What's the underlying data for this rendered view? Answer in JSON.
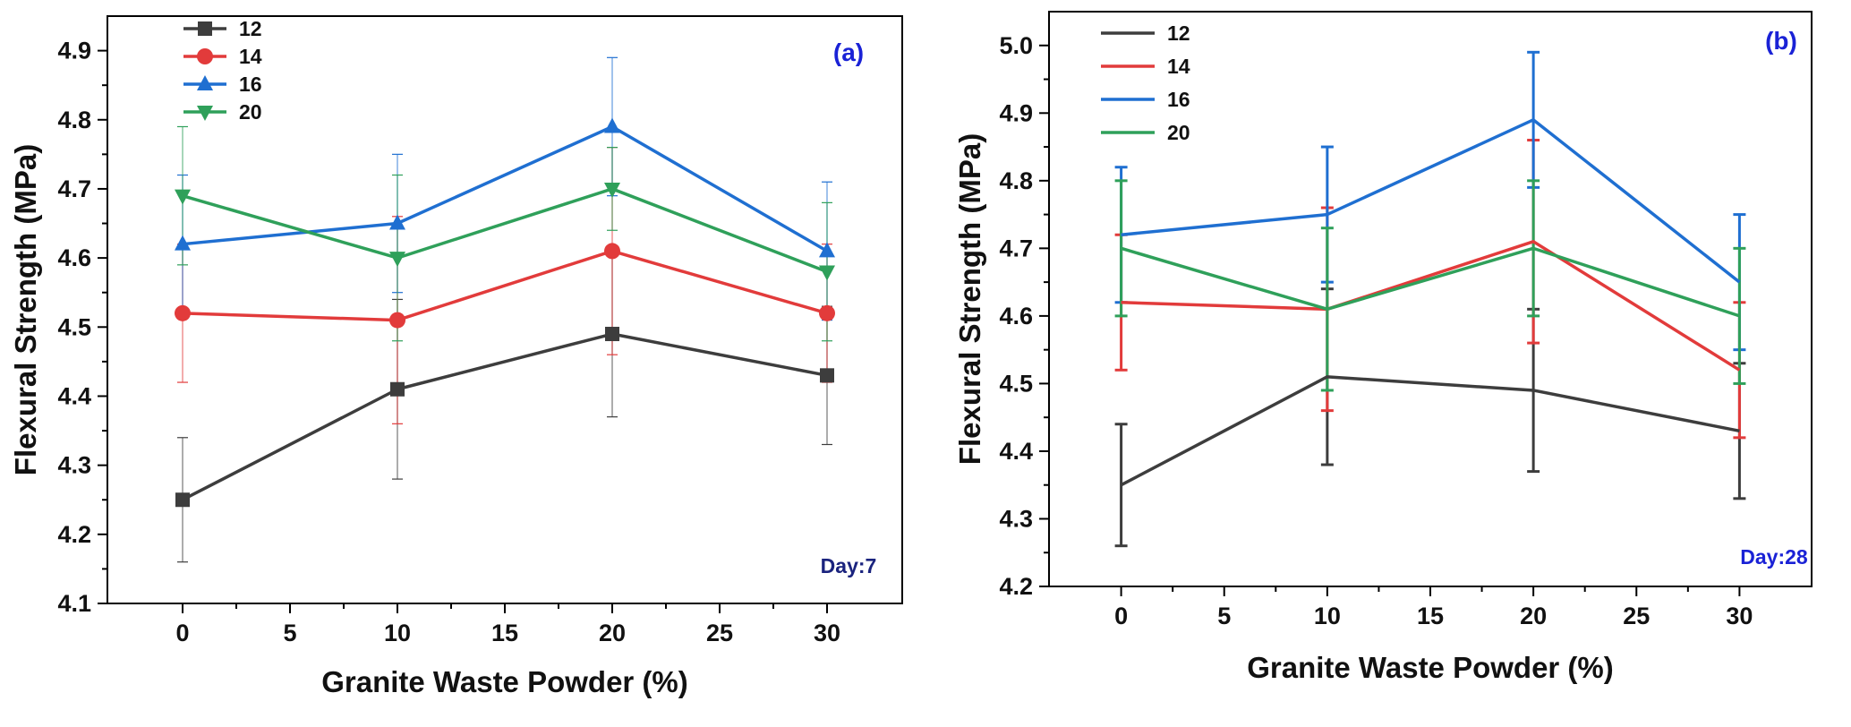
{
  "chart_data": [
    {
      "id": "a",
      "type": "line",
      "panel_label": "(a)",
      "day_label": "Day:7",
      "label_color": "#1a22d6",
      "day_color": "#1a237e",
      "xlabel": "Granite Waste Powder (%)",
      "ylabel": "Flexural Strength (MPa)",
      "xlim": [
        -3.5,
        33.5
      ],
      "ylim": [
        4.1,
        4.95
      ],
      "xticks": [
        0,
        5,
        10,
        15,
        20,
        25,
        30
      ],
      "xtick_labels": [
        "0",
        "5",
        "10",
        "15",
        "20",
        "25",
        "30"
      ],
      "yticks": [
        4.1,
        4.2,
        4.3,
        4.4,
        4.5,
        4.6,
        4.7,
        4.8,
        4.9
      ],
      "ytick_labels": [
        "4.1",
        "4.2",
        "4.3",
        "4.4",
        "4.5",
        "4.6",
        "4.7",
        "4.8",
        "4.9"
      ],
      "legend_markers": true,
      "errorbar_style": "thin",
      "x": [
        0,
        10,
        20,
        30
      ],
      "series": [
        {
          "name": "12",
          "color": "#3d3d3d",
          "marker": "square",
          "values": [
            4.25,
            4.41,
            4.49,
            4.43
          ],
          "errors": [
            0.09,
            0.13,
            0.12,
            0.1
          ]
        },
        {
          "name": "14",
          "color": "#e23b3b",
          "marker": "circle",
          "values": [
            4.52,
            4.51,
            4.61,
            4.52
          ],
          "errors": [
            0.1,
            0.15,
            0.15,
            0.1
          ]
        },
        {
          "name": "16",
          "color": "#1f6fd1",
          "marker": "triangle-up",
          "values": [
            4.62,
            4.65,
            4.79,
            4.61
          ],
          "errors": [
            0.1,
            0.1,
            0.1,
            0.1
          ]
        },
        {
          "name": "20",
          "color": "#2fa05a",
          "marker": "triangle-down",
          "values": [
            4.69,
            4.6,
            4.7,
            4.58
          ],
          "errors": [
            0.1,
            0.12,
            0.06,
            0.1
          ]
        }
      ]
    },
    {
      "id": "b",
      "type": "line",
      "panel_label": "(b)",
      "day_label": "Day:28",
      "label_color": "#1a22d6",
      "day_color": "#1a22d6",
      "xlabel": "Granite Waste Powder (%)",
      "ylabel": "Flexural Strength (MPa)",
      "xlim": [
        -3.5,
        33.5
      ],
      "ylim": [
        4.2,
        5.05
      ],
      "xticks": [
        0,
        5,
        10,
        15,
        20,
        25,
        30
      ],
      "xtick_labels": [
        "0",
        "5",
        "10",
        "15",
        "20",
        "25",
        "30"
      ],
      "yticks": [
        4.2,
        4.3,
        4.4,
        4.5,
        4.6,
        4.7,
        4.8,
        4.9,
        5.0
      ],
      "ytick_labels": [
        "4.2",
        "4.3",
        "4.4",
        "4.5",
        "4.6",
        "4.7",
        "4.8",
        "4.9",
        "5.0"
      ],
      "legend_markers": false,
      "errorbar_style": "thick",
      "x": [
        0,
        10,
        20,
        30
      ],
      "series": [
        {
          "name": "12",
          "color": "#3d3d3d",
          "marker": "none",
          "values": [
            4.35,
            4.51,
            4.49,
            4.43
          ],
          "errors": [
            0.09,
            0.13,
            0.12,
            0.1
          ]
        },
        {
          "name": "14",
          "color": "#e23b3b",
          "marker": "none",
          "values": [
            4.62,
            4.61,
            4.71,
            4.52
          ],
          "errors": [
            0.1,
            0.15,
            0.15,
            0.1
          ]
        },
        {
          "name": "16",
          "color": "#1f6fd1",
          "marker": "none",
          "values": [
            4.72,
            4.75,
            4.89,
            4.65
          ],
          "errors": [
            0.1,
            0.1,
            0.1,
            0.1
          ]
        },
        {
          "name": "20",
          "color": "#2fa05a",
          "marker": "none",
          "values": [
            4.7,
            4.61,
            4.7,
            4.6
          ],
          "errors": [
            0.1,
            0.12,
            0.1,
            0.1
          ]
        }
      ]
    }
  ]
}
